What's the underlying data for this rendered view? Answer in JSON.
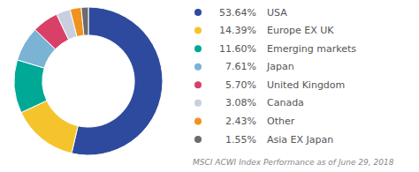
{
  "chart_data": {
    "type": "donut",
    "subtitle": "MSCI ACWI Index Performance as of June 29, 2018",
    "categories": [
      "USA",
      "Europe EX UK",
      "Emerging markets",
      "Japan",
      "United Kingdom",
      "Canada",
      "Other",
      "Asia EX Japan"
    ],
    "values": [
      53.64,
      14.39,
      11.6,
      7.61,
      5.7,
      3.08,
      2.43,
      1.55
    ],
    "value_labels": [
      "53.64%",
      "14.39%",
      "11.60%",
      "7.61%",
      "5.70%",
      "3.08%",
      "2.43%",
      "1.55%"
    ],
    "colors": [
      "#2d4a9e",
      "#f5c42c",
      "#00a896",
      "#7ab3d4",
      "#d94068",
      "#c8d0e0",
      "#f0921e",
      "#6b6b6b"
    ],
    "legend": "right"
  }
}
